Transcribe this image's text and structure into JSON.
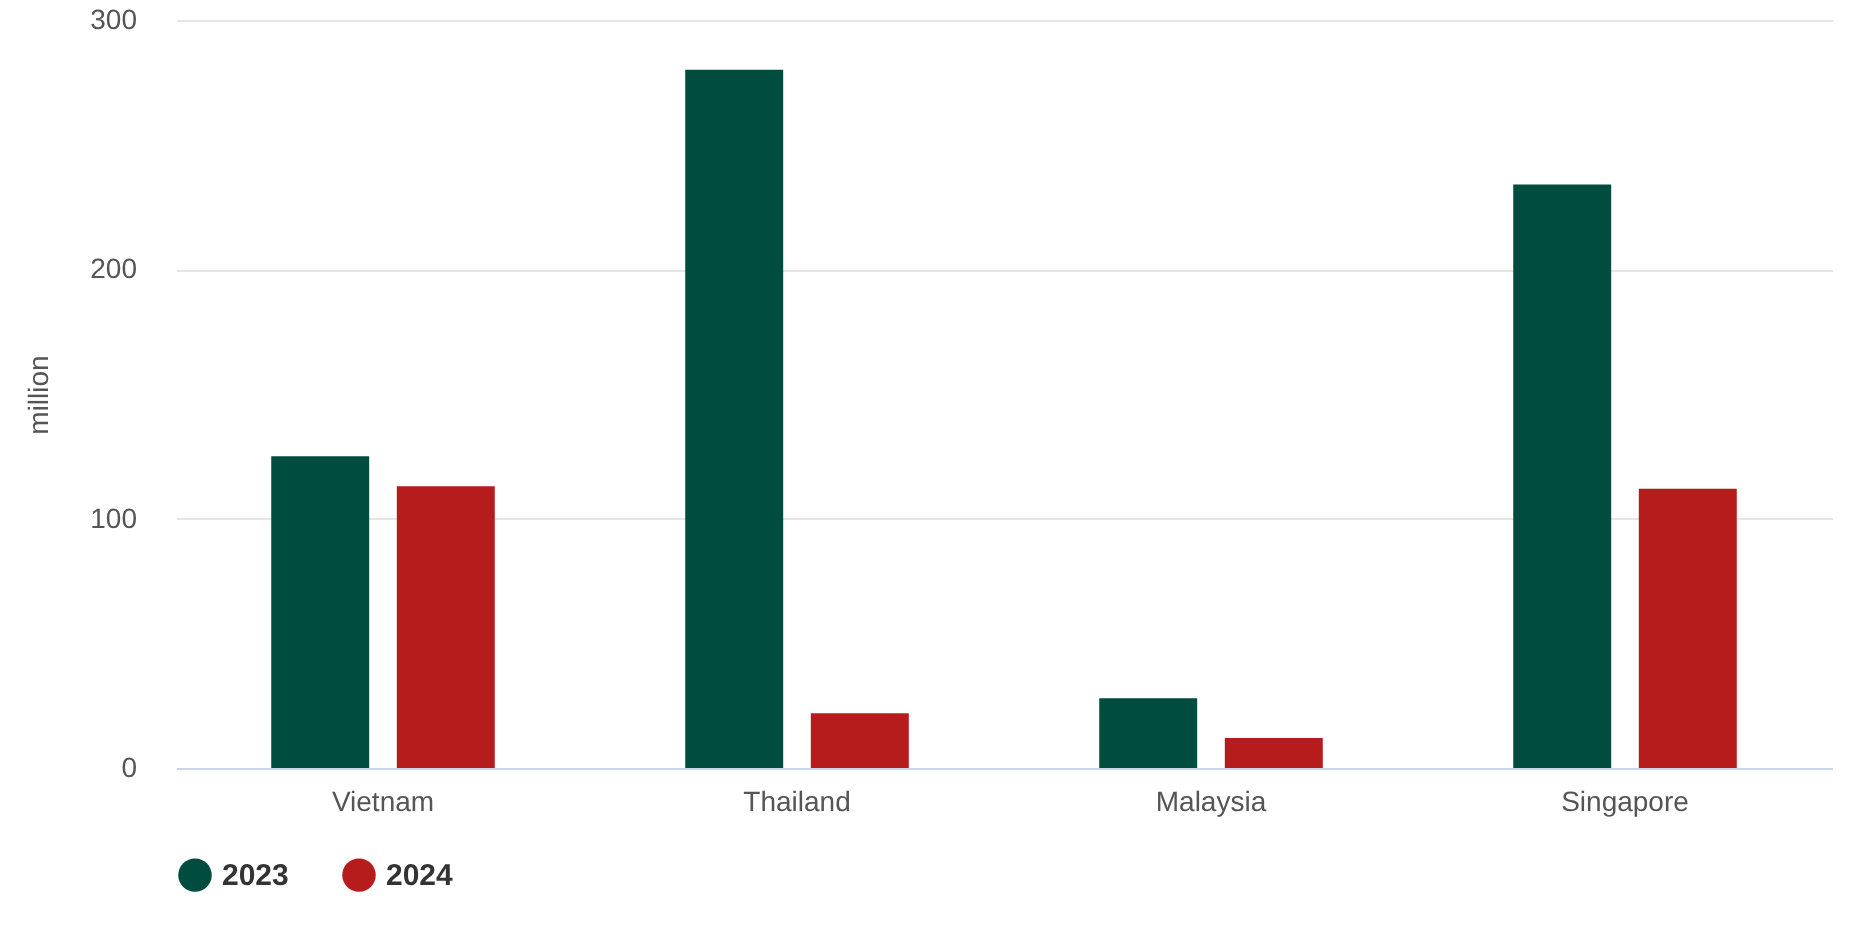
{
  "chart_data": {
    "type": "bar",
    "ylabel": "million",
    "categories": [
      "Vietnam",
      "Thailand",
      "Malaysia",
      "Singapore"
    ],
    "series": [
      {
        "name": "2023",
        "color": "#004d3f",
        "values": [
          125,
          280,
          28,
          234
        ]
      },
      {
        "name": "2024",
        "color": "#b71c1c",
        "values": [
          113,
          22,
          12,
          112
        ]
      }
    ],
    "ylim": [
      0,
      300
    ],
    "yticks": [
      0,
      100,
      200,
      300
    ],
    "grid": "y",
    "legend": "bottom"
  }
}
